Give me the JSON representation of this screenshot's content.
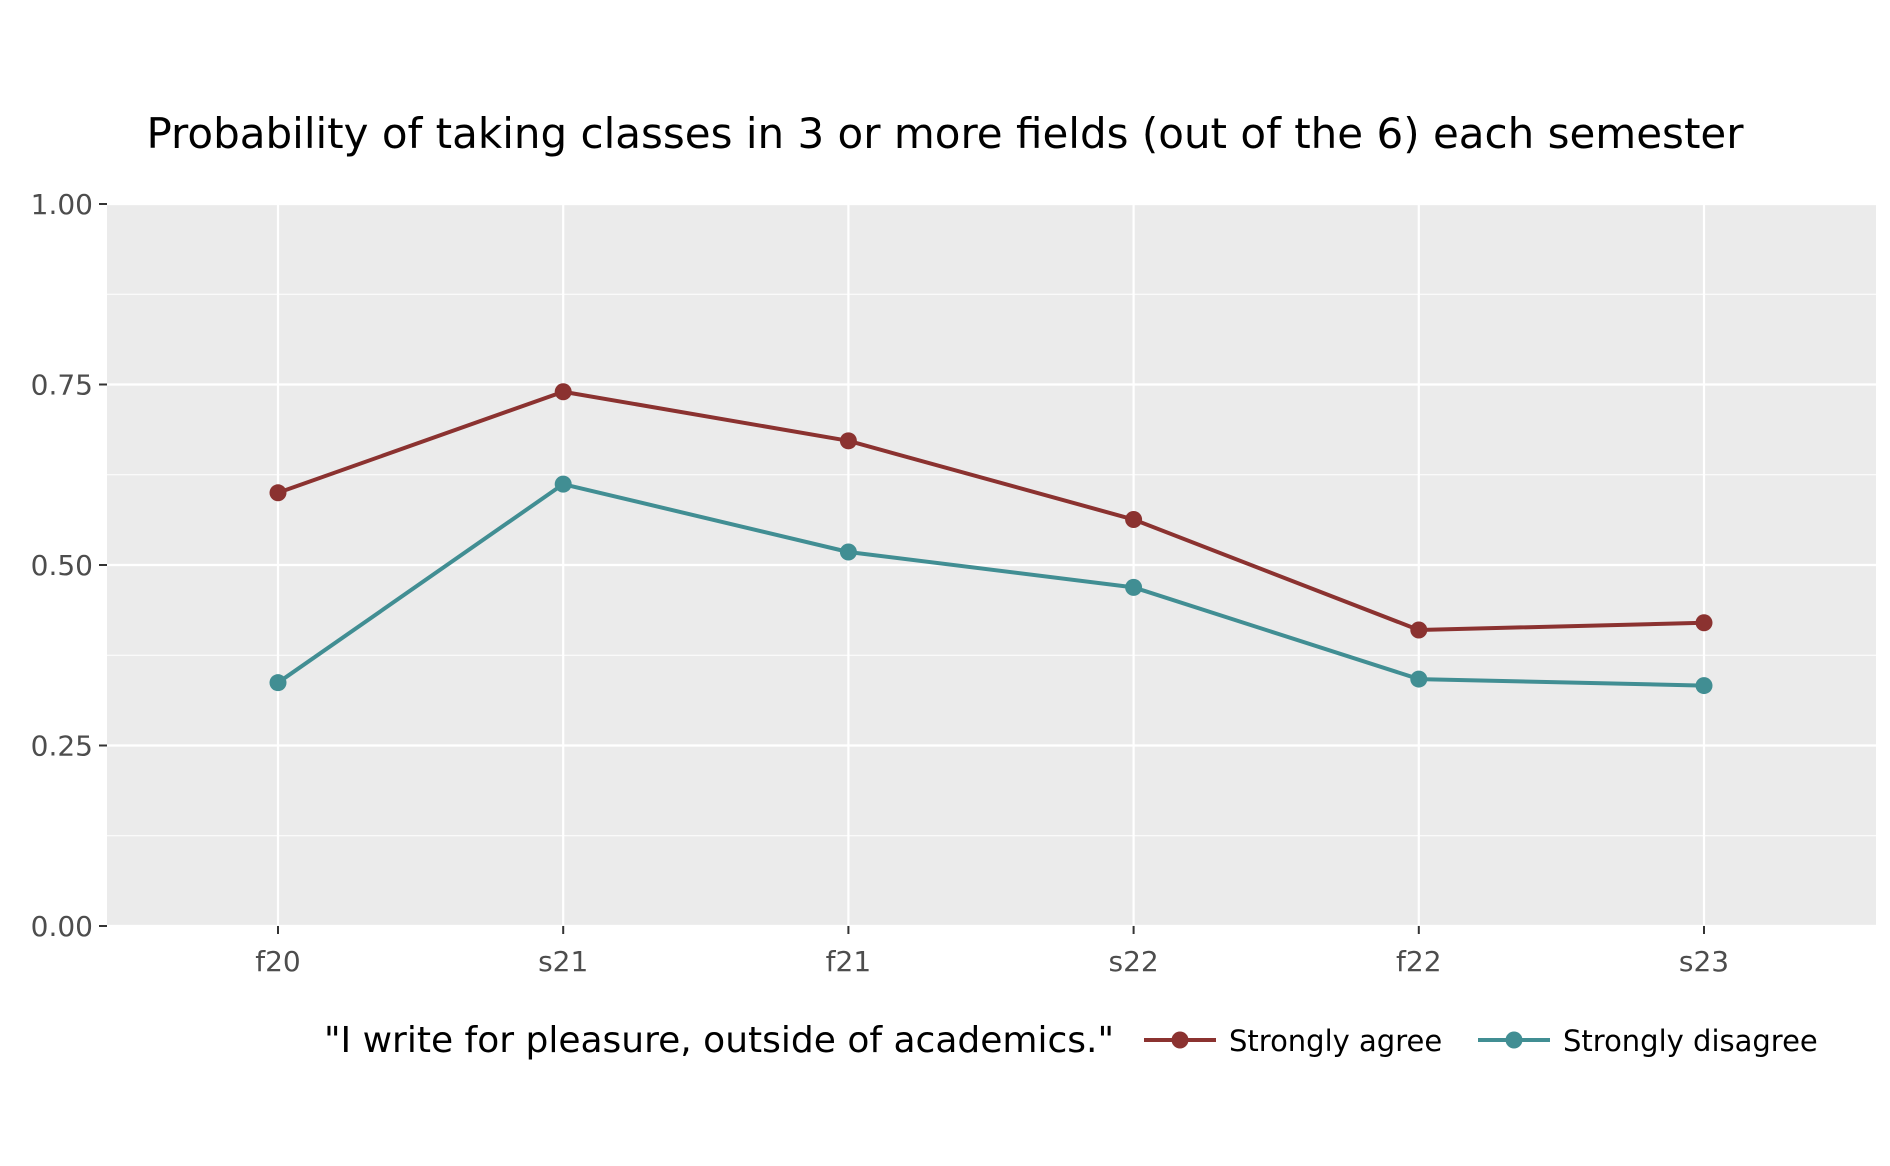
{
  "chart_data": {
    "type": "line",
    "title": "Probability of taking classes in 3 or more fields (out of the 6) each semester",
    "xlabel": "",
    "ylabel": "",
    "categories": [
      "f20",
      "s21",
      "f21",
      "s22",
      "f22",
      "s23"
    ],
    "ylim": [
      0,
      1
    ],
    "yticks": [
      0,
      0.25,
      0.5,
      0.75,
      1
    ],
    "ytick_labels": [
      "0.00",
      "0.25",
      "0.50",
      "0.75",
      "1.00"
    ],
    "grid": true,
    "legend": {
      "title": "\"I write for pleasure, outside of academics.\"",
      "position": "bottom"
    },
    "series": [
      {
        "name": "Strongly agree",
        "color": "#8b3230",
        "values": [
          0.6,
          0.74,
          0.672,
          0.563,
          0.41,
          0.42
        ]
      },
      {
        "name": "Strongly disagree",
        "color": "#418e93",
        "values": [
          0.337,
          0.612,
          0.518,
          0.469,
          0.342,
          0.333
        ]
      }
    ],
    "colors": {
      "panel_background": "#ebebeb",
      "gridline": "#ffffff",
      "axis_text": "#4d4d4d"
    }
  }
}
